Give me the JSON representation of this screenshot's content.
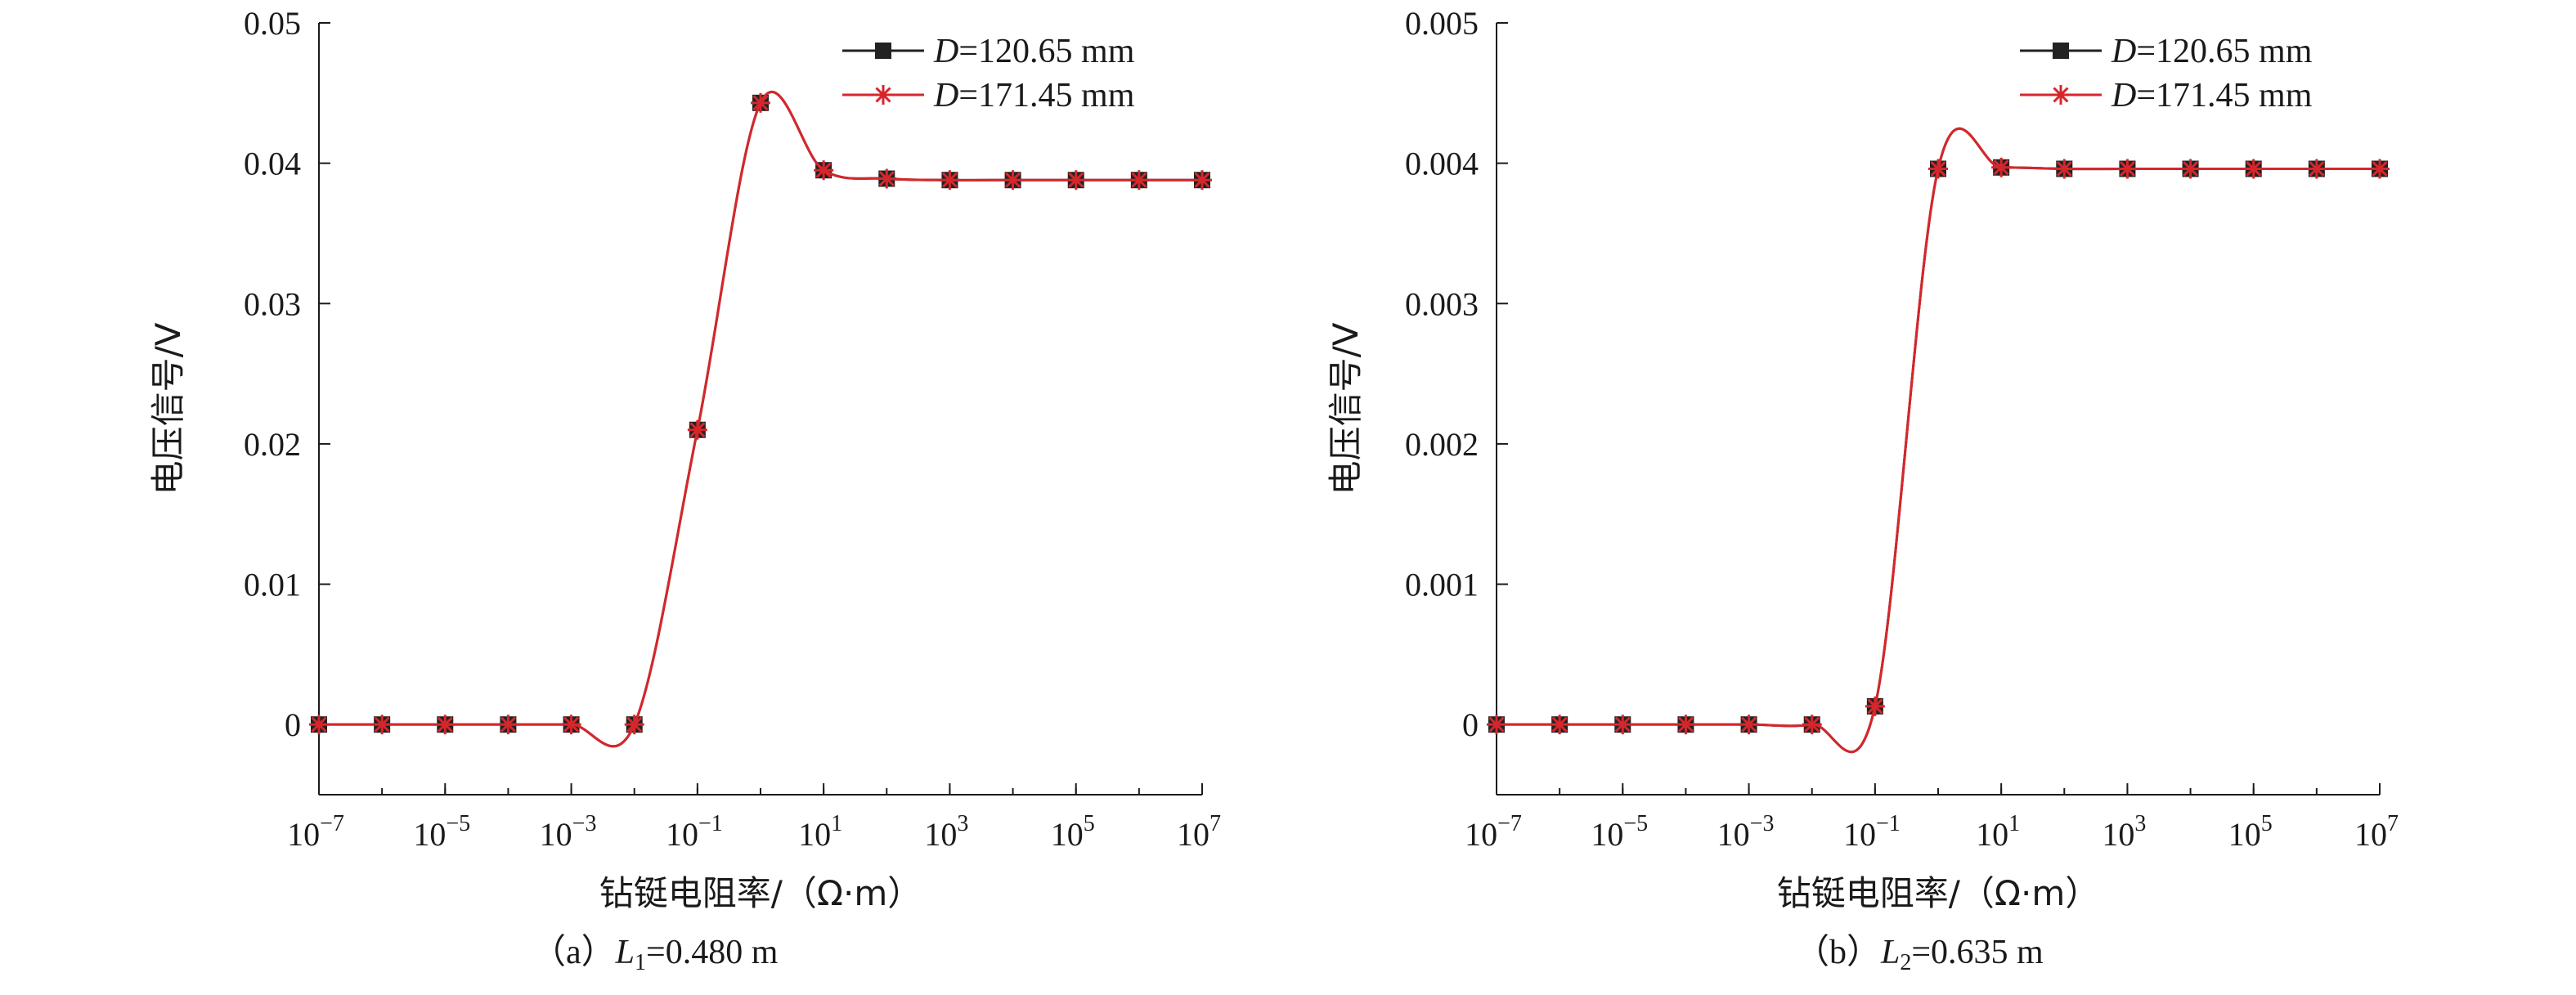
{
  "chart_data": [
    {
      "type": "line",
      "caption": {
        "prefix": "（a）",
        "var": "L",
        "sub": "1",
        "rest": "=0.480 m"
      },
      "xlabel": "钻铤电阻率/（Ω·m）",
      "ylabel": "电压信号/V",
      "x_scale": "log",
      "xlim": [
        1e-07,
        10000000.0
      ],
      "ylim": [
        -0.005,
        0.05
      ],
      "y_ticks": [
        0,
        0.01,
        0.02,
        0.03,
        0.04,
        0.05
      ],
      "y_tick_labels": [
        "0",
        "0.01",
        "0.02",
        "0.03",
        "0.04",
        "0.05"
      ],
      "x_ticks": [
        1e-07,
        1e-05,
        0.001,
        0.1,
        10.0,
        1000.0,
        100000.0,
        10000000.0
      ],
      "x_tick_labels": [
        {
          "base": "10",
          "exp": "−7"
        },
        {
          "base": "10",
          "exp": "−5"
        },
        {
          "base": "10",
          "exp": "−3"
        },
        {
          "base": "10",
          "exp": "−1"
        },
        {
          "base": "10",
          "exp": "1"
        },
        {
          "base": "10",
          "exp": "3"
        },
        {
          "base": "10",
          "exp": "5"
        },
        {
          "base": "10",
          "exp": "7"
        }
      ],
      "x": [
        1e-07,
        1e-06,
        1e-05,
        0.0001,
        0.001,
        0.01,
        0.1,
        1.0,
        10.0,
        100.0,
        1000.0,
        10000.0,
        100000.0,
        1000000.0,
        10000000.0
      ],
      "series": [
        {
          "var": "D",
          "rest": "=120.65 mm",
          "marker": "square",
          "color": "#222222",
          "values": [
            0,
            0,
            0,
            0,
            0,
            0,
            0.021,
            0.0443,
            0.0395,
            0.0389,
            0.0388,
            0.0388,
            0.0388,
            0.0388,
            0.0388
          ]
        },
        {
          "var": "D",
          "rest": "=171.45 mm",
          "marker": "star",
          "color": "#d7262b",
          "values": [
            0,
            0,
            0,
            0,
            0,
            0,
            0.021,
            0.0443,
            0.0395,
            0.0389,
            0.0388,
            0.0388,
            0.0388,
            0.0388,
            0.0388
          ]
        }
      ],
      "legend": "top-right",
      "grid": false
    },
    {
      "type": "line",
      "caption": {
        "prefix": "（b）",
        "var": "L",
        "sub": "2",
        "rest": "=0.635 m"
      },
      "xlabel": "钻铤电阻率/（Ω·m）",
      "ylabel": "电压信号/V",
      "x_scale": "log",
      "xlim": [
        1e-07,
        10000000.0
      ],
      "ylim": [
        -0.0005,
        0.005
      ],
      "y_ticks": [
        0,
        0.001,
        0.002,
        0.003,
        0.004,
        0.005
      ],
      "y_tick_labels": [
        "0",
        "0.001",
        "0.002",
        "0.003",
        "0.004",
        "0.005"
      ],
      "x_ticks": [
        1e-07,
        1e-05,
        0.001,
        0.1,
        10.0,
        1000.0,
        100000.0,
        10000000.0
      ],
      "x_tick_labels": [
        {
          "base": "10",
          "exp": "−7"
        },
        {
          "base": "10",
          "exp": "−5"
        },
        {
          "base": "10",
          "exp": "−3"
        },
        {
          "base": "10",
          "exp": "−1"
        },
        {
          "base": "10",
          "exp": "1"
        },
        {
          "base": "10",
          "exp": "3"
        },
        {
          "base": "10",
          "exp": "5"
        },
        {
          "base": "10",
          "exp": "7"
        }
      ],
      "x": [
        1e-07,
        1e-06,
        1e-05,
        0.0001,
        0.001,
        0.01,
        0.1,
        1.0,
        10.0,
        100.0,
        1000.0,
        10000.0,
        100000.0,
        1000000.0,
        10000000.0
      ],
      "series": [
        {
          "var": "D",
          "rest": "=120.65 mm",
          "marker": "square",
          "color": "#222222",
          "values": [
            0,
            0,
            0,
            0,
            0,
            0,
            0.00013,
            0.00396,
            0.00397,
            0.00396,
            0.00396,
            0.00396,
            0.00396,
            0.00396,
            0.00396
          ]
        },
        {
          "var": "D",
          "rest": "=171.45 mm",
          "marker": "star",
          "color": "#d7262b",
          "values": [
            0,
            0,
            0,
            0,
            0,
            0,
            0.00013,
            0.00396,
            0.00397,
            0.00396,
            0.00396,
            0.00396,
            0.00396,
            0.00396,
            0.00396
          ]
        }
      ],
      "legend": "top-right",
      "grid": false
    }
  ]
}
